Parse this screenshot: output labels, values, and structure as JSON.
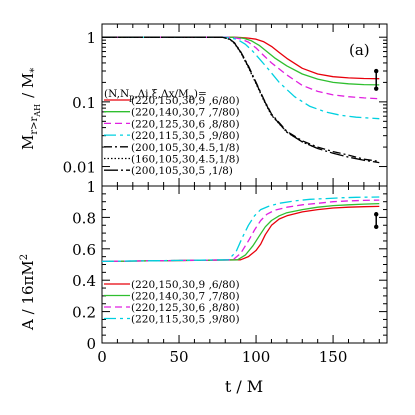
{
  "chart_data": [
    {
      "type": "line",
      "panel_label": "(a)",
      "ylabel_main": "M",
      "ylabel_sub": "r>r",
      "ylabel_subsub": "AH",
      "ylabel_tail": "/  M",
      "ylabel_star": "*",
      "yscale": "log",
      "ylim": [
        0.005,
        1.6
      ],
      "xlim": [
        0,
        185
      ],
      "yticks": [
        {
          "v": 1,
          "label": "1"
        },
        {
          "v": 0.1,
          "label": "0.1"
        },
        {
          "v": 0.01,
          "label": "0.01"
        }
      ],
      "legend_title": "(N,N",
      "legend_title_sub": "p",
      "legend_title_tail": ",Δi,ξ,Δx/M",
      "legend_title_sub2": "p",
      "legend_title_end": ")=",
      "series": [
        {
          "name": "(220,150,30,9 ,6/80)",
          "color": "#e8000b",
          "dash": "",
          "x": [
            0,
            85,
            90,
            95,
            100,
            105,
            110,
            115,
            120,
            130,
            140,
            150,
            160,
            170,
            180
          ],
          "y": [
            1,
            1,
            0.99,
            0.97,
            0.93,
            0.85,
            0.72,
            0.58,
            0.47,
            0.33,
            0.27,
            0.245,
            0.235,
            0.23,
            0.228
          ]
        },
        {
          "name": "(220,140,30,7 ,7/80)",
          "color": "#2fbf2f",
          "dash": "",
          "x": [
            0,
            82,
            88,
            92,
            97,
            102,
            107,
            112,
            120,
            130,
            140,
            150,
            160,
            170,
            180
          ],
          "y": [
            1,
            1,
            0.99,
            0.96,
            0.88,
            0.75,
            0.6,
            0.48,
            0.36,
            0.27,
            0.225,
            0.2,
            0.19,
            0.185,
            0.183
          ]
        },
        {
          "name": "(220,125,30,6 ,8/80)",
          "color": "#e020e0",
          "dash": "7,4",
          "x": [
            0,
            80,
            86,
            90,
            95,
            100,
            105,
            110,
            120,
            130,
            140,
            150,
            160,
            170,
            180
          ],
          "y": [
            1,
            1,
            0.98,
            0.94,
            0.84,
            0.68,
            0.52,
            0.4,
            0.26,
            0.18,
            0.145,
            0.128,
            0.12,
            0.115,
            0.112
          ]
        },
        {
          "name": "(220,115,30,5 ,9/80)",
          "color": "#00d0e0",
          "dash": "12,4,3,4",
          "x": [
            0,
            78,
            84,
            88,
            93,
            98,
            103,
            108,
            115,
            125,
            135,
            145,
            155,
            165,
            180
          ],
          "y": [
            1,
            1,
            0.97,
            0.92,
            0.78,
            0.6,
            0.44,
            0.32,
            0.2,
            0.12,
            0.085,
            0.07,
            0.062,
            0.058,
            0.055
          ]
        },
        {
          "name": "(200,105,30,4.5,1/8)",
          "color": "#000000",
          "dash": "8,3,2,3",
          "x": [
            0,
            78,
            83,
            86,
            90,
            95,
            100,
            105,
            110,
            120,
            130,
            140,
            150,
            160,
            170,
            180
          ],
          "y": [
            1,
            1,
            0.93,
            0.82,
            0.6,
            0.36,
            0.2,
            0.11,
            0.065,
            0.035,
            0.025,
            0.02,
            0.017,
            0.015,
            0.013,
            0.012
          ]
        },
        {
          "name": "(160,105,30,4.5,1/8)",
          "color": "#000000",
          "dash": "1.5,2",
          "x": [
            0,
            78,
            83,
            86,
            90,
            95,
            100,
            105,
            110,
            120,
            130,
            140
          ],
          "y": [
            1,
            1,
            0.92,
            0.8,
            0.58,
            0.34,
            0.19,
            0.105,
            0.062,
            0.034,
            0.024,
            0.019
          ]
        },
        {
          "name": "(200,105,30,5  ,1/8)",
          "color": "#000000",
          "dash": "14,3,2,3",
          "x": [
            0,
            78,
            83,
            86,
            90,
            95,
            100,
            105,
            110,
            120,
            130,
            140,
            150,
            160,
            170,
            180
          ],
          "y": [
            1,
            1,
            0.93,
            0.81,
            0.59,
            0.35,
            0.195,
            0.108,
            0.063,
            0.034,
            0.024,
            0.019,
            0.016,
            0.014,
            0.0125,
            0.0115
          ]
        }
      ],
      "errorbar": {
        "x": 178,
        "y_center": 0.2,
        "y_low": 0.16,
        "y_high": 0.3
      }
    },
    {
      "type": "line",
      "ylabel": "A  /  16πM",
      "ylabel_sup": "2",
      "xlabel": "t  /  M",
      "ylim": [
        0,
        1
      ],
      "xlim": [
        0,
        185
      ],
      "yticks": [
        {
          "v": 0,
          "label": "0"
        },
        {
          "v": 0.2,
          "label": "0.2"
        },
        {
          "v": 0.4,
          "label": "0.4"
        },
        {
          "v": 0.6,
          "label": "0.6"
        },
        {
          "v": 0.8,
          "label": "0.8"
        },
        {
          "v": 1,
          "label": "1"
        }
      ],
      "xticks": [
        {
          "v": 0,
          "label": "0"
        },
        {
          "v": 50,
          "label": "50"
        },
        {
          "v": 100,
          "label": "100"
        },
        {
          "v": 150,
          "label": "150"
        }
      ],
      "series": [
        {
          "name": "(220,150,30,9 ,6/80)",
          "color": "#e8000b",
          "dash": "",
          "x": [
            0,
            90,
            95,
            100,
            103,
            106,
            110,
            115,
            120,
            130,
            140,
            150,
            160,
            170,
            180
          ],
          "y": [
            0.52,
            0.53,
            0.55,
            0.59,
            0.63,
            0.69,
            0.75,
            0.79,
            0.81,
            0.835,
            0.85,
            0.86,
            0.865,
            0.868,
            0.87
          ]
        },
        {
          "name": "(220,140,30,7 ,7/80)",
          "color": "#2fbf2f",
          "dash": "",
          "x": [
            0,
            88,
            93,
            98,
            102,
            106,
            110,
            115,
            120,
            130,
            140,
            150,
            160,
            170,
            180
          ],
          "y": [
            0.52,
            0.53,
            0.56,
            0.62,
            0.68,
            0.74,
            0.78,
            0.81,
            0.83,
            0.85,
            0.865,
            0.875,
            0.88,
            0.885,
            0.888
          ]
        },
        {
          "name": "(220,125,30,6 ,8/80)",
          "color": "#e020e0",
          "dash": "7,4",
          "x": [
            0,
            85,
            90,
            95,
            99,
            103,
            107,
            112,
            120,
            130,
            140,
            150,
            160,
            170,
            180
          ],
          "y": [
            0.52,
            0.53,
            0.57,
            0.65,
            0.72,
            0.78,
            0.82,
            0.845,
            0.865,
            0.88,
            0.89,
            0.9,
            0.905,
            0.908,
            0.91
          ]
        },
        {
          "name": "(220,115,30,5 ,9/80)",
          "color": "#00d0e0",
          "dash": "12,4,3,4",
          "x": [
            0,
            82,
            87,
            91,
            95,
            99,
            103,
            108,
            115,
            125,
            135,
            145,
            155,
            165,
            180
          ],
          "y": [
            0.52,
            0.53,
            0.58,
            0.67,
            0.75,
            0.81,
            0.85,
            0.87,
            0.89,
            0.905,
            0.915,
            0.92,
            0.925,
            0.928,
            0.93
          ]
        }
      ],
      "errorbar": {
        "x": 178,
        "y_center": 0.79,
        "y_low": 0.74,
        "y_high": 0.82
      }
    }
  ]
}
